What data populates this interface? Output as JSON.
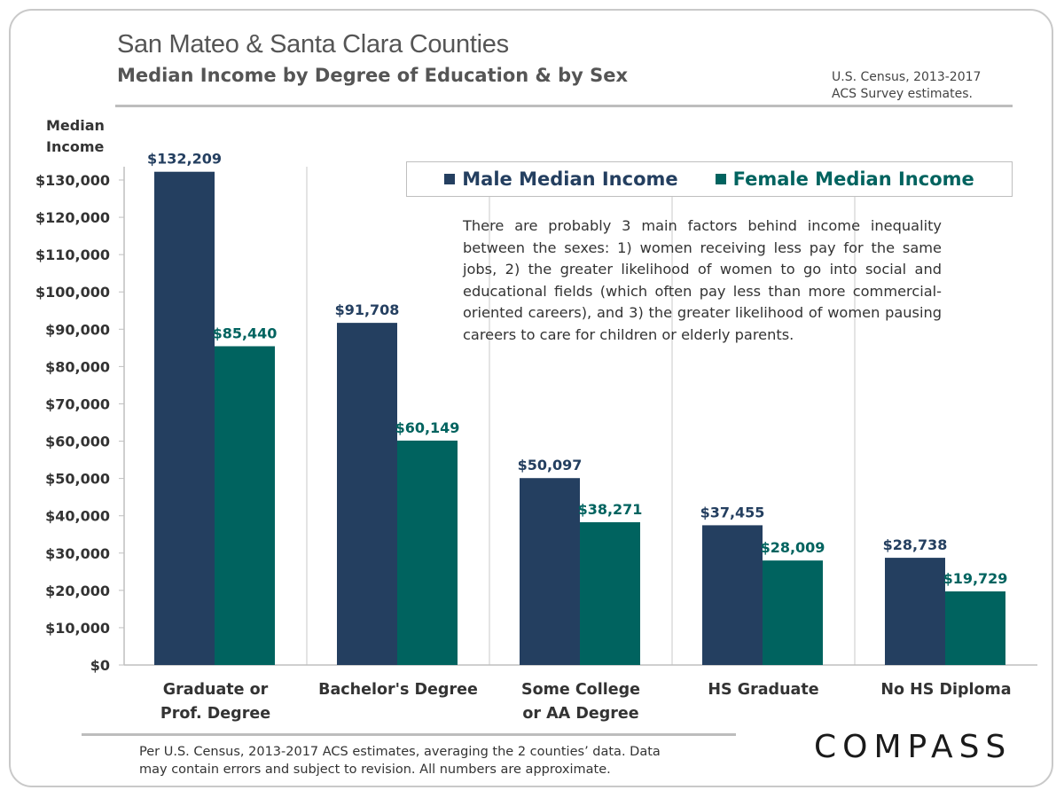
{
  "header": {
    "title": "San Mateo & Santa Clara Counties",
    "subtitle": "Median Income by Degree of Education & by Sex",
    "source_line1": "U.S. Census, 2013-2017",
    "source_line2": "ACS Survey estimates."
  },
  "axis": {
    "ylabel_line1": "Median",
    "ylabel_line2": "Income"
  },
  "note": "There are probably 3 main factors behind income inequality between the sexes: 1) women receiving less pay for the same jobs, 2) the greater likelihood of women to go into social and educational fields (which often pay less than more commercial-oriented careers), and 3) the greater likelihood of women pausing careers to care for children or elderly parents.",
  "footer": {
    "line1": "Per U.S. Census, 2013-2017 ACS estimates, averaging the 2 counties’ data. Data",
    "line2": "may contain errors and subject to revision. All numbers are approximate."
  },
  "logo": "COMPASS",
  "colors": {
    "male": "#243f60",
    "female": "#00635f",
    "male_label": "#243f60",
    "female_label": "#00635f"
  },
  "chart_data": {
    "type": "bar",
    "categories": [
      [
        "Graduate or",
        "Prof. Degree"
      ],
      [
        "Bachelor's Degree"
      ],
      [
        "Some College",
        "or AA Degree"
      ],
      [
        "HS Graduate"
      ],
      [
        "No HS Diploma"
      ]
    ],
    "series": [
      {
        "name": "Male Median Income",
        "values": [
          132209,
          91708,
          50097,
          37455,
          28738
        ],
        "labels": [
          "$132,209",
          "$91,708",
          "$50,097",
          "$37,455",
          "$28,738"
        ]
      },
      {
        "name": "Female Median Income",
        "values": [
          85440,
          60149,
          38271,
          28009,
          19729
        ],
        "labels": [
          "$85,440",
          "$60,149",
          "$38,271",
          "$28,009",
          "$19,729"
        ]
      }
    ],
    "ylim": [
      0,
      130000
    ],
    "yticks": [
      0,
      10000,
      20000,
      30000,
      40000,
      50000,
      60000,
      70000,
      80000,
      90000,
      100000,
      110000,
      120000,
      130000
    ],
    "ytick_labels": [
      "$0",
      "$10,000",
      "$20,000",
      "$30,000",
      "$40,000",
      "$50,000",
      "$60,000",
      "$70,000",
      "$80,000",
      "$90,000",
      "$100,000",
      "$110,000",
      "$120,000",
      "$130,000"
    ],
    "title": "Median Income by Degree of Education & by Sex",
    "xlabel": "",
    "ylabel": "Median Income",
    "legend": "top-right",
    "grid": false
  }
}
